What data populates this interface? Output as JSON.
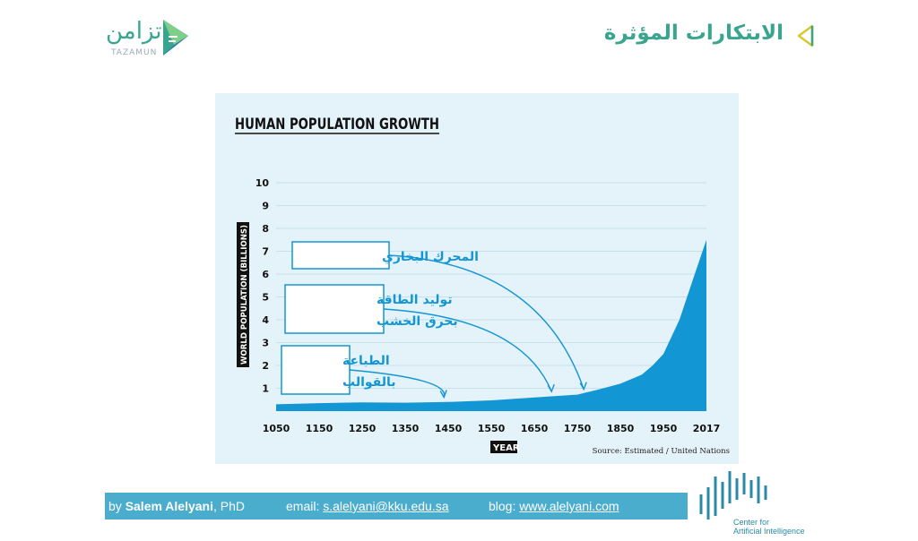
{
  "header": {
    "logo_text": "تزامن",
    "logo_sub": "TAZAMUN",
    "title": "الابتكارات المؤثرة",
    "accent_color": "#3aa58f"
  },
  "chart_data": {
    "type": "area",
    "title": "HUMAN POPULATION GROWTH",
    "xlabel": "YEAR",
    "ylabel": "WORLD POPULATION (BILLIONS)",
    "source": "Source: Estimated / United Nations",
    "x_ticks": [
      "1050",
      "1150",
      "1250",
      "1350",
      "1450",
      "1550",
      "1650",
      "1750",
      "1850",
      "1950",
      "2017"
    ],
    "y_ticks": [
      "1",
      "2",
      "3",
      "4",
      "5",
      "6",
      "7",
      "8",
      "9",
      "10"
    ],
    "ylim": [
      0,
      10
    ],
    "color": "#1296d4",
    "series": [
      {
        "values": [
          [
            1050,
            0.3
          ],
          [
            1150,
            0.35
          ],
          [
            1250,
            0.38
          ],
          [
            1350,
            0.37
          ],
          [
            1450,
            0.4
          ],
          [
            1550,
            0.47
          ],
          [
            1650,
            0.6
          ],
          [
            1750,
            0.72
          ],
          [
            1800,
            0.95
          ],
          [
            1850,
            1.2
          ],
          [
            1900,
            1.6
          ],
          [
            1925,
            2.0
          ],
          [
            1950,
            2.5
          ],
          [
            1975,
            4.0
          ],
          [
            2000,
            6.1
          ],
          [
            2017,
            7.5
          ]
        ]
      }
    ],
    "annotations": [
      {
        "lines": [
          "المحرك البخاري"
        ],
        "x": 1765,
        "y": 0.8
      },
      {
        "lines": [
          "توليد الطاقة",
          "بحرق الخشب"
        ],
        "x": 1690,
        "y": 0.7
      },
      {
        "lines": [
          "الطباعة",
          "بالقوالب"
        ],
        "x": 1440,
        "y": 0.45
      }
    ]
  },
  "footer": {
    "by_prefix": "by ",
    "author": "Salem Alelyani",
    "author_suffix": ", PhD",
    "email_label": "email: ",
    "email": "s.alelyani@kku.edu.sa",
    "blog_label": "blog: ",
    "blog": "www.alelyani.com",
    "bar_color": "#4badcd"
  },
  "cai_logo": {
    "line1": "Center for",
    "line2": "Artificial Intelligence"
  }
}
